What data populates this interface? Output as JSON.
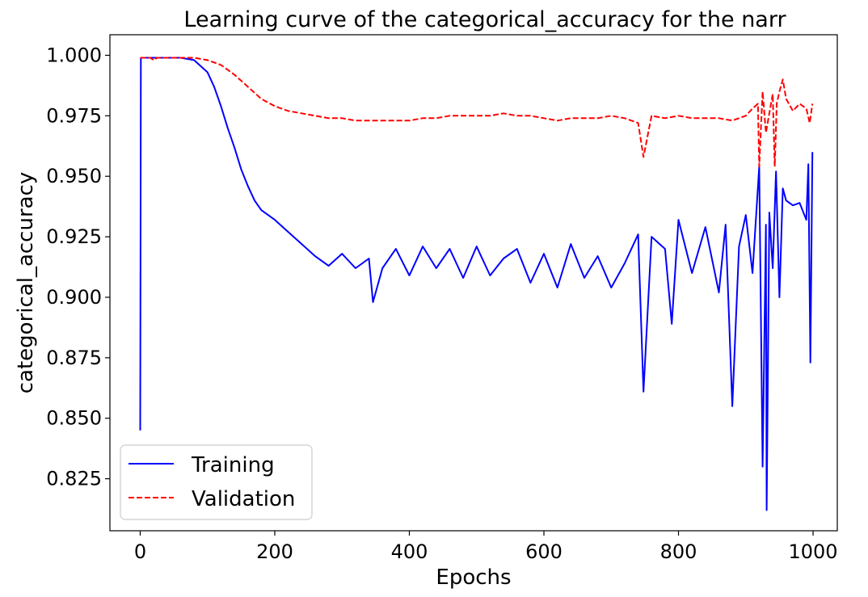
{
  "chart_data": {
    "type": "line",
    "title": "Learning curve of the categorical_accuracy for the narr",
    "xlabel": "Epochs",
    "ylabel": "categorical_accuracy",
    "xlim": [
      -45,
      1036
    ],
    "ylim": [
      0.8035,
      1.0085
    ],
    "xticks": [
      0,
      200,
      400,
      600,
      800,
      1000
    ],
    "xtick_labels": [
      "0",
      "200",
      "400",
      "600",
      "800",
      "1000"
    ],
    "yticks": [
      0.825,
      0.85,
      0.875,
      0.9,
      0.925,
      0.95,
      0.975,
      1.0
    ],
    "ytick_labels": [
      "0.825",
      "0.850",
      "0.875",
      "0.900",
      "0.925",
      "0.950",
      "0.975",
      "1.000"
    ],
    "grid": false,
    "legend": {
      "position": "lower-left"
    },
    "series": [
      {
        "name": "Training",
        "color": "#0000ff",
        "dash": "solid",
        "x": [
          0,
          1,
          5,
          30,
          60,
          80,
          100,
          110,
          120,
          130,
          140,
          150,
          160,
          170,
          180,
          200,
          220,
          240,
          260,
          280,
          300,
          320,
          340,
          346,
          360,
          380,
          400,
          420,
          440,
          460,
          480,
          500,
          520,
          540,
          560,
          580,
          600,
          620,
          640,
          660,
          680,
          700,
          720,
          740,
          748,
          760,
          780,
          790,
          800,
          820,
          840,
          860,
          870,
          880,
          890,
          900,
          910,
          920,
          925,
          930,
          931,
          935,
          940,
          945,
          950,
          955,
          960,
          970,
          980,
          990,
          993,
          996,
          999
        ],
        "y": [
          0.845,
          0.999,
          0.999,
          0.999,
          0.999,
          0.998,
          0.993,
          0.987,
          0.979,
          0.97,
          0.962,
          0.953,
          0.946,
          0.94,
          0.936,
          0.932,
          0.927,
          0.922,
          0.917,
          0.913,
          0.918,
          0.912,
          0.916,
          0.898,
          0.912,
          0.92,
          0.909,
          0.921,
          0.912,
          0.92,
          0.908,
          0.921,
          0.909,
          0.916,
          0.92,
          0.906,
          0.918,
          0.904,
          0.922,
          0.908,
          0.917,
          0.904,
          0.914,
          0.926,
          0.861,
          0.925,
          0.92,
          0.889,
          0.932,
          0.91,
          0.929,
          0.902,
          0.93,
          0.855,
          0.921,
          0.934,
          0.91,
          0.954,
          0.83,
          0.93,
          0.812,
          0.935,
          0.912,
          0.952,
          0.9,
          0.945,
          0.94,
          0.938,
          0.939,
          0.932,
          0.955,
          0.873,
          0.96
        ]
      },
      {
        "name": "Validation",
        "color": "#ff0000",
        "dash": "dashed",
        "x": [
          0,
          10,
          15,
          20,
          25,
          30,
          60,
          80,
          100,
          120,
          140,
          160,
          180,
          200,
          220,
          240,
          260,
          280,
          300,
          320,
          340,
          360,
          380,
          400,
          420,
          440,
          460,
          480,
          500,
          520,
          540,
          560,
          580,
          600,
          620,
          640,
          660,
          680,
          700,
          720,
          740,
          748,
          760,
          780,
          800,
          820,
          840,
          860,
          880,
          900,
          910,
          918,
          920,
          925,
          930,
          935,
          940,
          943,
          946,
          950,
          955,
          960,
          970,
          980,
          990,
          995,
          999
        ],
        "y": [
          0.999,
          0.999,
          0.999,
          0.998,
          0.999,
          0.999,
          0.999,
          0.999,
          0.998,
          0.996,
          0.992,
          0.987,
          0.982,
          0.979,
          0.977,
          0.976,
          0.975,
          0.974,
          0.974,
          0.973,
          0.973,
          0.973,
          0.973,
          0.973,
          0.974,
          0.974,
          0.975,
          0.975,
          0.975,
          0.975,
          0.976,
          0.975,
          0.975,
          0.974,
          0.973,
          0.974,
          0.974,
          0.974,
          0.975,
          0.974,
          0.972,
          0.958,
          0.975,
          0.974,
          0.975,
          0.974,
          0.974,
          0.974,
          0.973,
          0.975,
          0.978,
          0.98,
          0.954,
          0.985,
          0.968,
          0.976,
          0.984,
          0.954,
          0.98,
          0.985,
          0.99,
          0.982,
          0.977,
          0.98,
          0.978,
          0.972,
          0.98
        ]
      }
    ]
  }
}
